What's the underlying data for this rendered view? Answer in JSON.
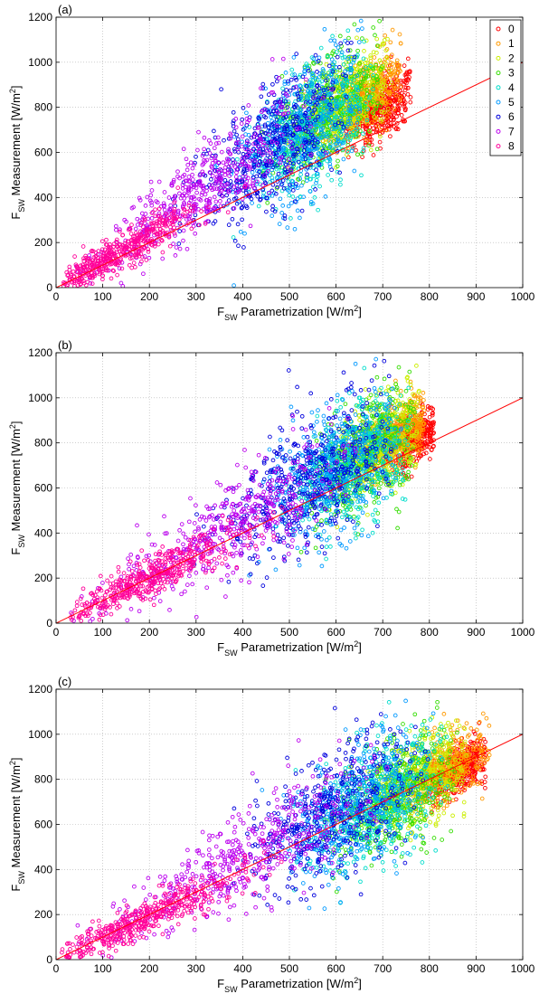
{
  "chart_data": [
    {
      "type": "scatter",
      "panel_label": "(a)",
      "xlabel": {
        "main": "F",
        "sub": "SW",
        "rest": " Parametrization [W/m",
        "sup": "2",
        "end": "]"
      },
      "ylabel": {
        "main": "F",
        "sub": "SW",
        "rest": " Measurement [W/m",
        "sup": "2",
        "end": "]"
      },
      "xlim": [
        0,
        1000
      ],
      "ylim": [
        0,
        1200
      ],
      "xticks": [
        "0",
        "100",
        "200",
        "300",
        "400",
        "500",
        "600",
        "700",
        "800",
        "900",
        "1000"
      ],
      "yticks": [
        "0",
        "200",
        "400",
        "600",
        "800",
        "1000",
        "1200"
      ],
      "grid": true,
      "legend": {
        "placement": "top-right",
        "entries": [
          "0",
          "1",
          "2",
          "3",
          "4",
          "5",
          "6",
          "7",
          "8"
        ]
      },
      "reference_line": {
        "x": [
          0,
          1000
        ],
        "y": [
          0,
          1000
        ],
        "color": "#ff0000"
      },
      "series": [
        {
          "name": "0",
          "color": "#ff0000",
          "x_center": 700,
          "slope": 1.15,
          "x_spread": 45,
          "resid_sd": 60,
          "x_min": 620,
          "x_max": 760
        },
        {
          "name": "1",
          "color": "#ff9900",
          "x_center": 660,
          "slope": 1.3,
          "x_spread": 55,
          "resid_sd": 70,
          "x_min": 520,
          "x_max": 740
        },
        {
          "name": "2",
          "color": "#ccee00",
          "x_center": 620,
          "slope": 1.32,
          "x_spread": 60,
          "resid_sd": 90,
          "x_min": 480,
          "x_max": 720
        },
        {
          "name": "3",
          "color": "#33dd00",
          "x_center": 580,
          "slope": 1.32,
          "x_spread": 65,
          "resid_sd": 110,
          "x_min": 430,
          "x_max": 700
        },
        {
          "name": "4",
          "color": "#00ddcc",
          "x_center": 550,
          "slope": 1.3,
          "x_spread": 70,
          "resid_sd": 130,
          "x_min": 380,
          "x_max": 680
        },
        {
          "name": "5",
          "color": "#0099ff",
          "x_center": 520,
          "slope": 1.3,
          "x_spread": 75,
          "resid_sd": 140,
          "x_min": 340,
          "x_max": 660
        },
        {
          "name": "6",
          "color": "#0000dd",
          "x_center": 470,
          "slope": 1.35,
          "x_spread": 85,
          "resid_sd": 150,
          "x_min": 250,
          "x_max": 640
        },
        {
          "name": "7",
          "color": "#bb00ee",
          "x_center": 320,
          "slope": 1.4,
          "x_spread": 110,
          "resid_sd": 120,
          "x_min": 30,
          "x_max": 600
        },
        {
          "name": "8",
          "color": "#ff0099",
          "x_center": 140,
          "slope": 1.15,
          "x_spread": 80,
          "resid_sd": 60,
          "x_min": 15,
          "x_max": 420
        }
      ]
    },
    {
      "type": "scatter",
      "panel_label": "(b)",
      "xlabel": {
        "main": "F",
        "sub": "SW",
        "rest": " Parametrization [W/m",
        "sup": "2",
        "end": "]"
      },
      "ylabel": {
        "main": "F",
        "sub": "SW",
        "rest": " Measurement [W/m",
        "sup": "2",
        "end": "]"
      },
      "xlim": [
        0,
        1000
      ],
      "ylim": [
        0,
        1200
      ],
      "xticks": [
        "0",
        "100",
        "200",
        "300",
        "400",
        "500",
        "600",
        "700",
        "800",
        "900",
        "1000"
      ],
      "yticks": [
        "0",
        "200",
        "400",
        "600",
        "800",
        "1000",
        "1200"
      ],
      "grid": true,
      "reference_line": {
        "x": [
          0,
          1000
        ],
        "y": [
          0,
          1000
        ],
        "color": "#ff0000"
      },
      "series": [
        {
          "name": "0",
          "color": "#ff0000",
          "x_center": 760,
          "slope": 1.08,
          "x_spread": 35,
          "resid_sd": 50,
          "x_min": 700,
          "x_max": 810
        },
        {
          "name": "1",
          "color": "#ff9900",
          "x_center": 730,
          "slope": 1.15,
          "x_spread": 45,
          "resid_sd": 60,
          "x_min": 620,
          "x_max": 790
        },
        {
          "name": "2",
          "color": "#ccee00",
          "x_center": 690,
          "slope": 1.15,
          "x_spread": 55,
          "resid_sd": 90,
          "x_min": 560,
          "x_max": 780
        },
        {
          "name": "3",
          "color": "#33dd00",
          "x_center": 660,
          "slope": 1.12,
          "x_spread": 60,
          "resid_sd": 110,
          "x_min": 520,
          "x_max": 770
        },
        {
          "name": "4",
          "color": "#00ddcc",
          "x_center": 630,
          "slope": 1.1,
          "x_spread": 65,
          "resid_sd": 120,
          "x_min": 470,
          "x_max": 760
        },
        {
          "name": "5",
          "color": "#0099ff",
          "x_center": 590,
          "slope": 1.15,
          "x_spread": 70,
          "resid_sd": 130,
          "x_min": 400,
          "x_max": 740
        },
        {
          "name": "6",
          "color": "#0000dd",
          "x_center": 540,
          "slope": 1.18,
          "x_spread": 90,
          "resid_sd": 140,
          "x_min": 280,
          "x_max": 720
        },
        {
          "name": "7",
          "color": "#bb00ee",
          "x_center": 380,
          "slope": 1.15,
          "x_spread": 120,
          "resid_sd": 120,
          "x_min": 30,
          "x_max": 680
        },
        {
          "name": "8",
          "color": "#ff0099",
          "x_center": 190,
          "slope": 0.98,
          "x_spread": 100,
          "resid_sd": 60,
          "x_min": 25,
          "x_max": 560
        }
      ]
    },
    {
      "type": "scatter",
      "panel_label": "(c)",
      "xlabel": {
        "main": "F",
        "sub": "SW",
        "rest": " Parametrization [W/m",
        "sup": "2",
        "end": "]"
      },
      "ylabel": {
        "main": "F",
        "sub": "SW",
        "rest": " Measurement [W/m",
        "sup": "2",
        "end": "]"
      },
      "xlim": [
        0,
        1000
      ],
      "ylim": [
        0,
        1200
      ],
      "xticks": [
        "0",
        "100",
        "200",
        "300",
        "400",
        "500",
        "600",
        "700",
        "800",
        "900",
        "1000"
      ],
      "yticks": [
        "0",
        "200",
        "400",
        "600",
        "800",
        "1000",
        "1200"
      ],
      "grid": true,
      "reference_line": {
        "x": [
          0,
          1000
        ],
        "y": [
          0,
          1000
        ],
        "color": "#ff0000"
      },
      "series": [
        {
          "name": "0",
          "color": "#ff0000",
          "x_center": 860,
          "slope": 0.98,
          "x_spread": 40,
          "resid_sd": 40,
          "x_min": 790,
          "x_max": 920
        },
        {
          "name": "1",
          "color": "#ff9900",
          "x_center": 830,
          "slope": 1.02,
          "x_spread": 50,
          "resid_sd": 55,
          "x_min": 700,
          "x_max": 930
        },
        {
          "name": "2",
          "color": "#ccee00",
          "x_center": 770,
          "slope": 1.02,
          "x_spread": 60,
          "resid_sd": 80,
          "x_min": 600,
          "x_max": 880
        },
        {
          "name": "3",
          "color": "#33dd00",
          "x_center": 730,
          "slope": 1.0,
          "x_spread": 65,
          "resid_sd": 100,
          "x_min": 560,
          "x_max": 860
        },
        {
          "name": "4",
          "color": "#00ddcc",
          "x_center": 690,
          "slope": 1.02,
          "x_spread": 70,
          "resid_sd": 120,
          "x_min": 500,
          "x_max": 840
        },
        {
          "name": "5",
          "color": "#0099ff",
          "x_center": 640,
          "slope": 1.05,
          "x_spread": 75,
          "resid_sd": 130,
          "x_min": 440,
          "x_max": 820
        },
        {
          "name": "6",
          "color": "#0000dd",
          "x_center": 590,
          "slope": 1.08,
          "x_spread": 90,
          "resid_sd": 140,
          "x_min": 320,
          "x_max": 800
        },
        {
          "name": "7",
          "color": "#bb00ee",
          "x_center": 390,
          "slope": 1.12,
          "x_spread": 140,
          "resid_sd": 120,
          "x_min": 20,
          "x_max": 720
        },
        {
          "name": "8",
          "color": "#ff0099",
          "x_center": 190,
          "slope": 0.95,
          "x_spread": 110,
          "resid_sd": 55,
          "x_min": 10,
          "x_max": 560
        }
      ]
    }
  ]
}
